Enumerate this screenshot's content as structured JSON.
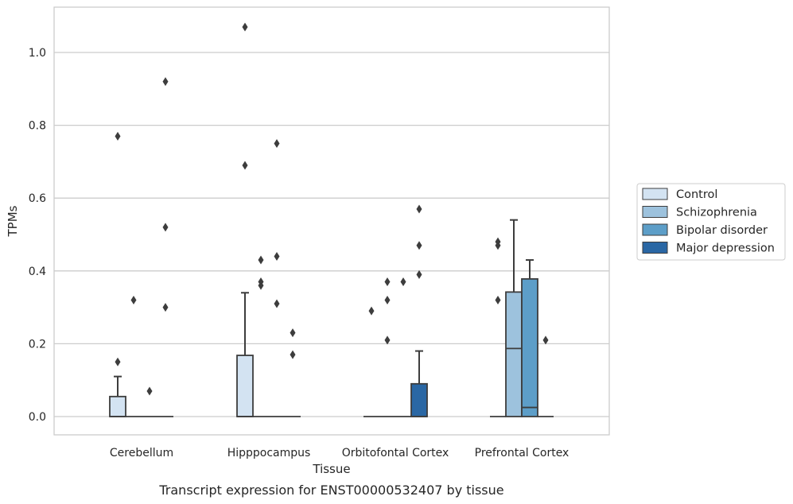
{
  "chart_data": {
    "type": "box",
    "xlabel": "Tissue",
    "ylabel": "TPMs",
    "caption": "Transcript expression for ENST00000532407 by tissue",
    "ylim": [
      -0.05,
      1.13
    ],
    "yticks": [
      0.0,
      0.2,
      0.4,
      0.6,
      0.8,
      1.0
    ],
    "ytick_labels": [
      "0.0",
      "0.2",
      "0.4",
      "0.6",
      "0.8",
      "1.0"
    ],
    "grid": "horizontal",
    "legend_position": "right",
    "categories": [
      "Cerebellum",
      "Hipppocampus",
      "Orbitofontal Cortex",
      "Prefrontal Cortex"
    ],
    "series": [
      {
        "name": "Control",
        "color": "#d3e3f2",
        "boxes": [
          {
            "q1": 0.0,
            "median": 0.0,
            "q3": 0.055,
            "whisker_low": 0.0,
            "whisker_high": 0.11,
            "outliers": [
              0.77,
              0.15
            ]
          },
          {
            "q1": 0.0,
            "median": 0.0,
            "q3": 0.168,
            "whisker_low": 0.0,
            "whisker_high": 0.34,
            "outliers": [
              1.07,
              0.69
            ]
          },
          {
            "q1": 0.0,
            "median": 0.0,
            "q3": 0.0,
            "whisker_low": 0.0,
            "whisker_high": 0.0,
            "outliers": [
              0.29
            ]
          },
          {
            "q1": 0.0,
            "median": 0.0,
            "q3": 0.0,
            "whisker_low": 0.0,
            "whisker_high": 0.0,
            "outliers": [
              0.48,
              0.47,
              0.32
            ]
          }
        ]
      },
      {
        "name": "Schizophrenia",
        "color": "#9dc2dd",
        "boxes": [
          {
            "q1": 0.0,
            "median": 0.0,
            "q3": 0.0,
            "whisker_low": 0.0,
            "whisker_high": 0.0,
            "outliers": [
              0.32
            ]
          },
          {
            "q1": 0.0,
            "median": 0.0,
            "q3": 0.0,
            "whisker_low": 0.0,
            "whisker_high": 0.0,
            "outliers": [
              0.43,
              0.37,
              0.36
            ]
          },
          {
            "q1": 0.0,
            "median": 0.0,
            "q3": 0.0,
            "whisker_low": 0.0,
            "whisker_high": 0.0,
            "outliers": [
              0.37,
              0.32,
              0.21
            ]
          },
          {
            "q1": 0.0,
            "median": 0.187,
            "q3": 0.342,
            "whisker_low": 0.0,
            "whisker_high": 0.54,
            "outliers": []
          }
        ]
      },
      {
        "name": "Bipolar disorder",
        "color": "#5d9ec8",
        "boxes": [
          {
            "q1": 0.0,
            "median": 0.0,
            "q3": 0.0,
            "whisker_low": 0.0,
            "whisker_high": 0.0,
            "outliers": [
              0.07
            ]
          },
          {
            "q1": 0.0,
            "median": 0.0,
            "q3": 0.0,
            "whisker_low": 0.0,
            "whisker_high": 0.0,
            "outliers": [
              0.75,
              0.44,
              0.31
            ]
          },
          {
            "q1": 0.0,
            "median": 0.0,
            "q3": 0.0,
            "whisker_low": 0.0,
            "whisker_high": 0.0,
            "outliers": [
              0.37
            ]
          },
          {
            "q1": 0.0,
            "median": 0.025,
            "q3": 0.378,
            "whisker_low": 0.0,
            "whisker_high": 0.43,
            "outliers": []
          }
        ]
      },
      {
        "name": "Major depression",
        "color": "#2a67a4",
        "boxes": [
          {
            "q1": 0.0,
            "median": 0.0,
            "q3": 0.0,
            "whisker_low": 0.0,
            "whisker_high": 0.0,
            "outliers": [
              0.92,
              0.52,
              0.3
            ]
          },
          {
            "q1": 0.0,
            "median": 0.0,
            "q3": 0.0,
            "whisker_low": 0.0,
            "whisker_high": 0.0,
            "outliers": [
              0.23,
              0.17
            ]
          },
          {
            "q1": 0.0,
            "median": 0.0,
            "q3": 0.09,
            "whisker_low": 0.0,
            "whisker_high": 0.18,
            "outliers": [
              0.57,
              0.47,
              0.39
            ]
          },
          {
            "q1": 0.0,
            "median": 0.0,
            "q3": 0.0,
            "whisker_low": 0.0,
            "whisker_high": 0.0,
            "outliers": [
              0.21
            ]
          }
        ]
      }
    ]
  }
}
